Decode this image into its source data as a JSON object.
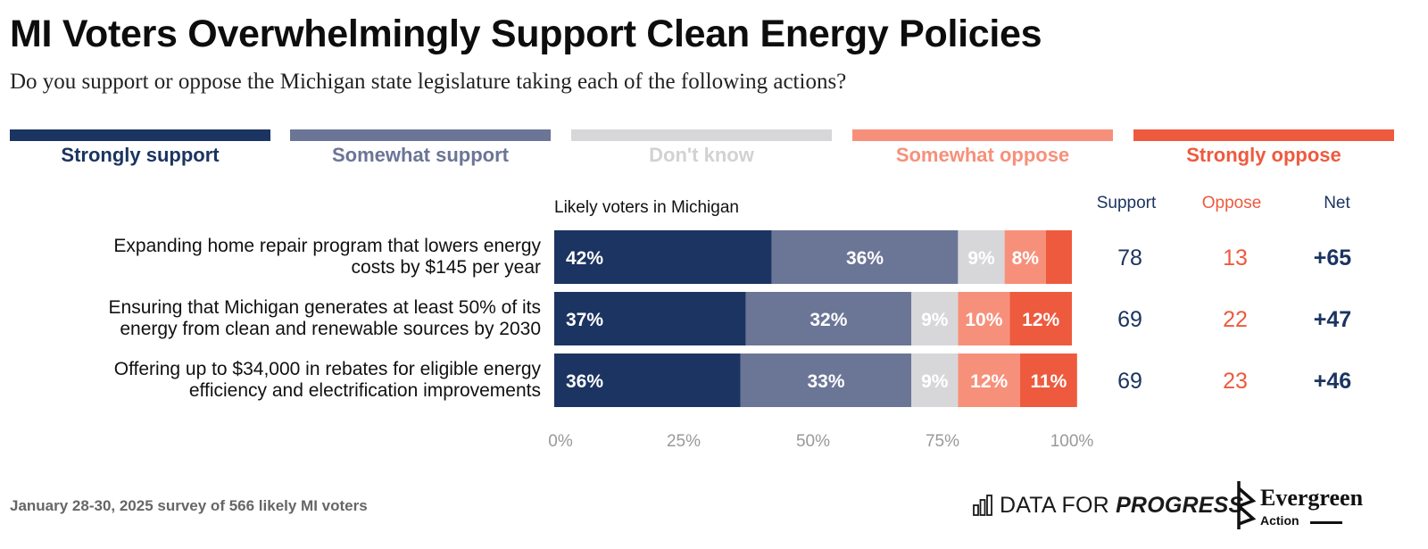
{
  "title": "MI Voters Overwhelmingly Support Clean Energy Policies",
  "subtitle": "Do you support or oppose the Michigan state legislature taking each of the following actions?",
  "legend": [
    {
      "label": "Strongly support",
      "color": "#1b3461",
      "text_color": "#1b3461"
    },
    {
      "label": "Somewhat support",
      "color": "#6b7596",
      "text_color": "#6b7596"
    },
    {
      "label": "Don't know",
      "color": "#d7d7d9",
      "text_color": "#d2d2d4"
    },
    {
      "label": "Somewhat oppose",
      "color": "#f7907a",
      "text_color": "#f7907a"
    },
    {
      "label": "Strongly oppose",
      "color": "#ee5a3e",
      "text_color": "#ee5a3e"
    }
  ],
  "chart_data": {
    "type": "bar",
    "orientation": "horizontal",
    "stacked": true,
    "group_label": "Likely voters in Michigan",
    "categories": [
      [
        "Expanding home repair program that lowers energy",
        "costs by $145 per year"
      ],
      [
        "Ensuring that Michigan generates at least 50% of its",
        "energy from clean and renewable sources by 2030"
      ],
      [
        "Offering up to $34,000 in rebates for eligible energy",
        "efficiency and electrification improvements"
      ]
    ],
    "series": [
      {
        "name": "Strongly support",
        "values": [
          42,
          37,
          36
        ],
        "labels": [
          "42%",
          "37%",
          "36%"
        ],
        "color": "#1b3461"
      },
      {
        "name": "Somewhat support",
        "values": [
          36,
          32,
          33
        ],
        "labels": [
          "36%",
          "32%",
          "33%"
        ],
        "color": "#6b7596"
      },
      {
        "name": "Don't know",
        "values": [
          9,
          9,
          9
        ],
        "labels": [
          "9%",
          "9%",
          "9%"
        ],
        "color": "#d7d7d9"
      },
      {
        "name": "Somewhat oppose",
        "values": [
          8,
          10,
          12
        ],
        "labels": [
          "8%",
          "10%",
          "12%"
        ],
        "color": "#f7907a"
      },
      {
        "name": "Strongly oppose",
        "values": [
          5,
          12,
          11
        ],
        "labels": [
          "",
          "12%",
          "11%"
        ],
        "color": "#ee5a3e"
      }
    ],
    "xlim": [
      0,
      100
    ],
    "xticks": [
      "0%",
      "25%",
      "50%",
      "75%",
      "100%"
    ],
    "summary_columns": [
      {
        "header": "Support",
        "values": [
          "78",
          "69",
          "69"
        ],
        "color": "#1b3461"
      },
      {
        "header": "Oppose",
        "values": [
          "13",
          "22",
          "23"
        ],
        "color": "#ee5a3e"
      },
      {
        "header": "Net",
        "values": [
          "+65",
          "+47",
          "+46"
        ],
        "color": "#1b3461"
      }
    ]
  },
  "footer": {
    "note": "January 28-30, 2025 survey of 566 likely MI voters",
    "dfp_plain": "DATA FOR ",
    "dfp_italic": "PROGRESS",
    "eg_word": "Evergreen",
    "eg_sub": "Action"
  }
}
